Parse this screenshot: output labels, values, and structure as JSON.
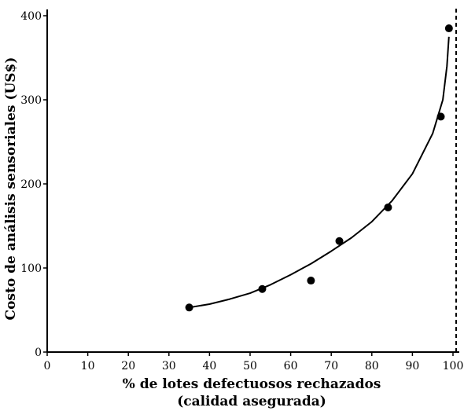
{
  "chart_data": {
    "type": "scatter",
    "xlabel_line1": "% de lotes defectuosos rechazados",
    "xlabel_line2": "(calidad asegurada)",
    "ylabel": "Costo de análisis sensoriales  (US$)",
    "xlim": [
      0,
      100
    ],
    "ylim": [
      0,
      400
    ],
    "x_ticks": [
      0,
      10,
      20,
      30,
      40,
      50,
      60,
      70,
      80,
      90,
      100
    ],
    "y_ticks": [
      0,
      100,
      200,
      300,
      400
    ],
    "grid": false,
    "points": [
      {
        "x": 35,
        "y": 53
      },
      {
        "x": 53,
        "y": 75
      },
      {
        "x": 65,
        "y": 85
      },
      {
        "x": 72,
        "y": 132
      },
      {
        "x": 84,
        "y": 172
      },
      {
        "x": 97,
        "y": 280
      },
      {
        "x": 99,
        "y": 385
      }
    ],
    "fitted_curve": [
      {
        "x": 35,
        "y": 53
      },
      {
        "x": 40,
        "y": 57
      },
      {
        "x": 45,
        "y": 63
      },
      {
        "x": 50,
        "y": 70
      },
      {
        "x": 55,
        "y": 80
      },
      {
        "x": 60,
        "y": 92
      },
      {
        "x": 65,
        "y": 105
      },
      {
        "x": 70,
        "y": 120
      },
      {
        "x": 75,
        "y": 136
      },
      {
        "x": 80,
        "y": 155
      },
      {
        "x": 85,
        "y": 180
      },
      {
        "x": 90,
        "y": 212
      },
      {
        "x": 95,
        "y": 260
      },
      {
        "x": 97.5,
        "y": 300
      },
      {
        "x": 98.5,
        "y": 340
      },
      {
        "x": 99,
        "y": 375
      }
    ],
    "vertical_reference_x": 100
  }
}
